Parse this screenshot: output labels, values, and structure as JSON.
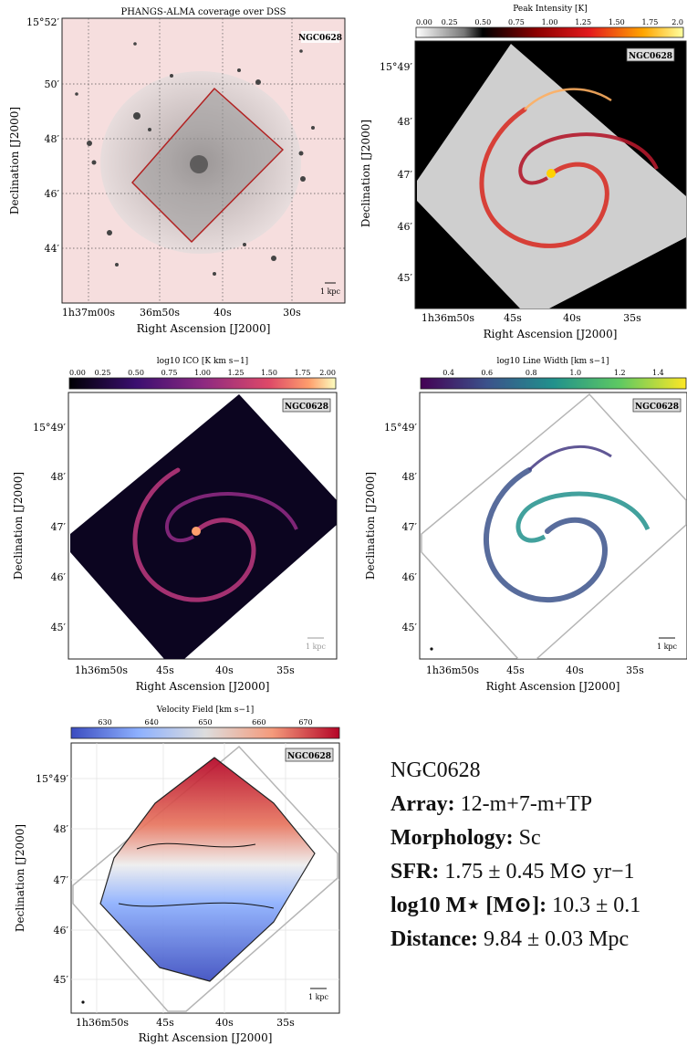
{
  "figure": {
    "galaxy_name": "NGC0628",
    "panels": [
      {
        "id": "dss",
        "title": "PHANGS-ALMA coverage over DSS",
        "colorbar": null,
        "badge": "NGC0628",
        "scalebar": "1 kpc",
        "x_label": "Right Ascension [J2000]",
        "y_label": "Declination [J2000]",
        "x_ticks": [
          "1h37m00s",
          "36m50s",
          "40s",
          "30s"
        ],
        "y_ticks": [
          "15°52′",
          "50′",
          "48′",
          "46′",
          "44′"
        ]
      },
      {
        "id": "peak",
        "title": "Peak Intensity [K]",
        "colorbar": {
          "ticks": [
            "0.00",
            "0.25",
            "0.50",
            "0.75",
            "1.00",
            "1.25",
            "1.50",
            "1.75",
            "2.0"
          ],
          "colormap": "gray-red-yellow"
        },
        "badge": "NGC0628",
        "scalebar": "",
        "x_label": "Right Ascension [J2000]",
        "y_label": "Declination [J2000]",
        "x_ticks": [
          "1h36m50s",
          "45s",
          "40s",
          "35s"
        ],
        "y_ticks": [
          "15°49′",
          "48′",
          "47′",
          "46′",
          "45′"
        ]
      },
      {
        "id": "ico",
        "title": "log10 ICO [K km s−1]",
        "colorbar": {
          "ticks": [
            "0.00",
            "0.25",
            "0.50",
            "0.75",
            "1.00",
            "1.25",
            "1.50",
            "1.75",
            "2.00"
          ],
          "colormap": "magma"
        },
        "badge": "NGC0628",
        "scalebar": "1 kpc",
        "x_label": "Right Ascension [J2000]",
        "y_label": "Declination [J2000]",
        "x_ticks": [
          "1h36m50s",
          "45s",
          "40s",
          "35s"
        ],
        "y_ticks": [
          "15°49′",
          "48′",
          "47′",
          "46′",
          "45′"
        ]
      },
      {
        "id": "width",
        "title": "log10 Line Width [km s−1]",
        "colorbar": {
          "ticks": [
            "0.4",
            "0.6",
            "0.8",
            "1.0",
            "1.2",
            "1.4"
          ],
          "colormap": "viridis"
        },
        "badge": "NGC0628",
        "scalebar": "1 kpc",
        "x_label": "Right Ascension [J2000]",
        "y_label": "Declination [J2000]",
        "x_ticks": [
          "1h36m50s",
          "45s",
          "40s",
          "35s"
        ],
        "y_ticks": [
          "15°49′",
          "48′",
          "47′",
          "46′",
          "45′"
        ]
      },
      {
        "id": "velocity",
        "title": "Velocity Field [km s−1]",
        "colorbar": {
          "ticks": [
            "630",
            "640",
            "650",
            "660",
            "670"
          ],
          "colormap": "coolwarm"
        },
        "badge": "NGC0628",
        "scalebar": "1 kpc",
        "x_label": "Right Ascension [J2000]",
        "y_label": "Declination [J2000]",
        "x_ticks": [
          "1h36m50s",
          "45s",
          "40s",
          "35s"
        ],
        "y_ticks": [
          "15°49′",
          "48′",
          "47′",
          "46′",
          "45′"
        ]
      }
    ],
    "colors": {
      "footprint_outline": "#b22222",
      "dss_tint": "#f6dede",
      "coverage_outline": "#b5b5b5"
    }
  },
  "info": {
    "name": "NGC0628",
    "array_label": "Array:",
    "array_value": "12-m+7-m+TP",
    "morphology_label": "Morphology:",
    "morphology_value": "Sc",
    "sfr_label": "SFR:",
    "sfr_value": "1.75 ± 0.45 M⊙ yr−1",
    "mass_label": "log10 M⋆ [M⊙]:",
    "mass_value": "10.3 ± 0.1",
    "distance_label": "Distance:",
    "distance_value": "9.84 ± 0.03 Mpc"
  }
}
